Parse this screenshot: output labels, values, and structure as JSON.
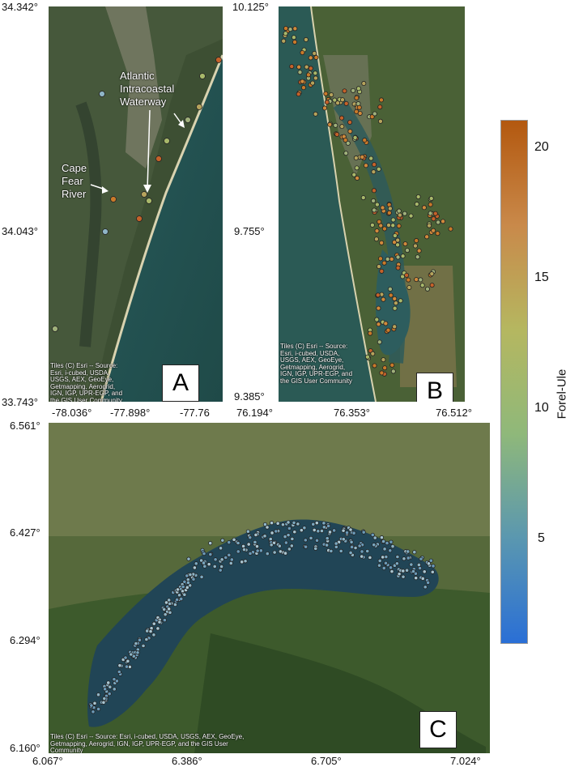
{
  "panels": {
    "A": {
      "letter": "A",
      "lat_ticks": [
        "34.342°",
        "34.043°",
        "33.743°"
      ],
      "lon_ticks": [
        "-78.036°",
        "-77.898°",
        "-77.76"
      ],
      "attribution": "Tiles (C) Esri -- Source: Esri, i-cubed, USDA, USGS, AEX, GeoEye, Getmapping, Aerogrid, IGN, IGP, UPR-EGP, and the GIS User Community",
      "labels": {
        "aiw": "Atlantic Intracoastal Waterway",
        "cfr": "Cape Fear River"
      }
    },
    "B": {
      "letter": "B",
      "lat_ticks": [
        "10.125°",
        "9.755°",
        "9.385°"
      ],
      "lon_ticks": [
        "76.194°",
        "76.353°",
        "76.512°"
      ],
      "attribution": "Tiles (C) Esri -- Source: Esri, i-cubed, USDA, USGS, AEX, GeoEye, Getmapping, Aerogrid, IGN, IGP, UPR-EGP, and the GIS User Community"
    },
    "C": {
      "letter": "C",
      "lat_ticks": [
        "6.561°",
        "6.427°",
        "6.294°",
        "6.160°"
      ],
      "lon_ticks": [
        "6.067°",
        "6.386°",
        "6.705°",
        "7.024°"
      ],
      "attribution": "Tiles (C) Esri -- Source: Esri, i-cubed, USDA, USGS, AEX, GeoEye, Getmapping, Aerogrid, IGN, IGP, UPR-EGP, and the GIS User Community"
    }
  },
  "colorbar": {
    "title": "Forel-Ule",
    "ticks": [
      "20",
      "15",
      "10",
      "5"
    ],
    "range": [
      1,
      21
    ],
    "colors": [
      "#2a6fd6",
      "#5a97b0",
      "#8fb87a",
      "#b5b760",
      "#c9894a",
      "#b3580f"
    ]
  }
}
